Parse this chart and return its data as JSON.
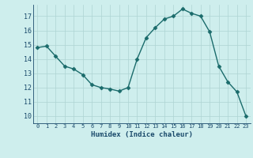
{
  "x": [
    0,
    1,
    2,
    3,
    4,
    5,
    6,
    7,
    8,
    9,
    10,
    11,
    12,
    13,
    14,
    15,
    16,
    17,
    18,
    19,
    20,
    21,
    22,
    23
  ],
  "y": [
    14.8,
    14.9,
    14.2,
    13.5,
    13.3,
    12.9,
    12.2,
    12.0,
    11.9,
    11.75,
    12.0,
    14.0,
    15.5,
    16.2,
    16.8,
    17.0,
    17.5,
    17.2,
    17.0,
    15.9,
    13.5,
    12.4,
    11.7,
    10.0
  ],
  "xlabel": "Humidex (Indice chaleur)",
  "xlim": [
    -0.5,
    23.5
  ],
  "ylim": [
    9.5,
    17.8
  ],
  "yticks": [
    10,
    11,
    12,
    13,
    14,
    15,
    16,
    17
  ],
  "line_color": "#1a6b6b",
  "marker_color": "#1a6b6b",
  "bg_color": "#ceeeed",
  "grid_color": "#aed4d3",
  "label_color": "#1a4a6b"
}
